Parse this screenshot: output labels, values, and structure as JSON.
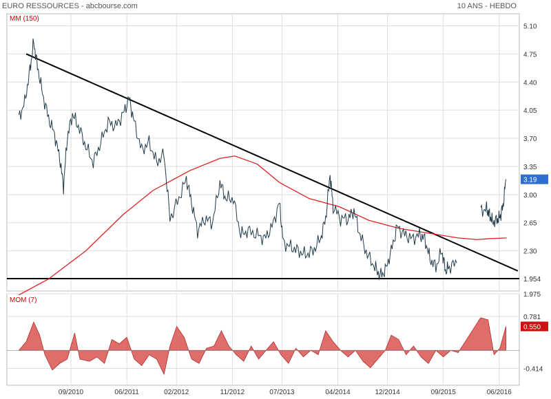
{
  "header": {
    "title": "EURO RESSOURCES - abcbourse.com",
    "period": "10 ANS - HEBDO"
  },
  "colors": {
    "price": "#1f3a4a",
    "ma": "#e02020",
    "trendline": "#000000",
    "mom_fill": "#d9534f",
    "badge_price": "#2f6fd0",
    "badge_mom": "#cc1111",
    "grid": "#dddddd"
  },
  "chart_data": [
    {
      "type": "line",
      "panel": "price",
      "indicator_label": "MM (150)",
      "ylim": [
        1.8,
        5.25
      ],
      "y_ticks": [
        "5.10",
        "4.75",
        "4.40",
        "4.05",
        "3.70",
        "3.35",
        "3.00",
        "2.65",
        "2.30",
        "1.954"
      ],
      "y_tick_values": [
        5.1,
        4.75,
        4.4,
        4.05,
        3.7,
        3.35,
        3.0,
        2.65,
        2.3,
        1.954
      ],
      "x_ticks": [
        "09/2010",
        "06/2011",
        "02/2012",
        "11/2012",
        "07/2013",
        "04/2014",
        "12/2014",
        "09/2015",
        "06/2016"
      ],
      "x_tick_positions": [
        0.0,
        0.75,
        1.417,
        2.167,
        2.833,
        3.583,
        4.25,
        5.0,
        5.75
      ],
      "last_price_label": "3.19",
      "last_price": 3.19,
      "price_series": [
        [
          -0.7,
          3.95
        ],
        [
          -0.62,
          4.15
        ],
        [
          -0.55,
          4.55
        ],
        [
          -0.5,
          4.9
        ],
        [
          -0.45,
          4.6
        ],
        [
          -0.38,
          4.25
        ],
        [
          -0.3,
          3.95
        ],
        [
          -0.22,
          3.75
        ],
        [
          -0.15,
          3.45
        ],
        [
          -0.1,
          3.1
        ],
        [
          -0.05,
          3.7
        ],
        [
          0.02,
          4.0
        ],
        [
          0.1,
          3.85
        ],
        [
          0.2,
          3.6
        ],
        [
          0.3,
          3.4
        ],
        [
          0.4,
          3.65
        ],
        [
          0.5,
          3.9
        ],
        [
          0.6,
          3.85
        ],
        [
          0.7,
          4.0
        ],
        [
          0.78,
          4.2
        ],
        [
          0.85,
          3.9
        ],
        [
          0.95,
          3.55
        ],
        [
          1.05,
          3.65
        ],
        [
          1.15,
          3.4
        ],
        [
          1.25,
          3.5
        ],
        [
          1.33,
          2.7
        ],
        [
          1.45,
          2.95
        ],
        [
          1.55,
          3.2
        ],
        [
          1.62,
          2.9
        ],
        [
          1.7,
          2.55
        ],
        [
          1.8,
          2.7
        ],
        [
          1.9,
          2.65
        ],
        [
          2.0,
          3.15
        ],
        [
          2.08,
          2.95
        ],
        [
          2.18,
          2.95
        ],
        [
          2.28,
          2.5
        ],
        [
          2.38,
          2.55
        ],
        [
          2.5,
          2.5
        ],
        [
          2.6,
          2.45
        ],
        [
          2.7,
          2.6
        ],
        [
          2.8,
          2.9
        ],
        [
          2.85,
          2.4
        ],
        [
          2.95,
          2.35
        ],
        [
          3.05,
          2.3
        ],
        [
          3.15,
          2.25
        ],
        [
          3.25,
          2.3
        ],
        [
          3.35,
          2.45
        ],
        [
          3.42,
          2.7
        ],
        [
          3.48,
          3.25
        ],
        [
          3.52,
          2.85
        ],
        [
          3.62,
          2.7
        ],
        [
          3.72,
          2.7
        ],
        [
          3.8,
          2.8
        ],
        [
          3.88,
          2.5
        ],
        [
          3.98,
          2.25
        ],
        [
          4.08,
          2.1
        ],
        [
          4.15,
          1.99
        ],
        [
          4.22,
          2.05
        ],
        [
          4.3,
          2.3
        ],
        [
          4.38,
          2.6
        ],
        [
          4.48,
          2.5
        ],
        [
          4.58,
          2.45
        ],
        [
          4.68,
          2.5
        ],
        [
          4.75,
          2.45
        ],
        [
          4.82,
          2.2
        ],
        [
          4.9,
          2.1
        ],
        [
          4.98,
          2.3
        ],
        [
          5.03,
          2.05
        ],
        [
          5.08,
          2.1
        ],
        [
          5.18,
          2.15
        ]
      ],
      "price_series_2": [
        [
          5.5,
          2.8
        ],
        [
          5.58,
          2.82
        ],
        [
          5.62,
          2.75
        ],
        [
          5.66,
          2.66
        ],
        [
          5.72,
          2.68
        ],
        [
          5.76,
          2.72
        ],
        [
          5.8,
          2.85
        ],
        [
          5.84,
          3.19
        ]
      ],
      "ma_series": [
        [
          -0.7,
          1.75
        ],
        [
          -0.3,
          1.95
        ],
        [
          0.2,
          2.3
        ],
        [
          0.7,
          2.75
        ],
        [
          1.1,
          3.05
        ],
        [
          1.6,
          3.3
        ],
        [
          2.0,
          3.45
        ],
        [
          2.2,
          3.48
        ],
        [
          2.5,
          3.38
        ],
        [
          2.8,
          3.15
        ],
        [
          3.2,
          2.95
        ],
        [
          3.6,
          2.85
        ],
        [
          4.0,
          2.68
        ],
        [
          4.4,
          2.58
        ],
        [
          4.8,
          2.52
        ],
        [
          5.2,
          2.46
        ],
        [
          5.45,
          2.44
        ],
        [
          5.6,
          2.45
        ],
        [
          5.85,
          2.46
        ]
      ],
      "trendline_down": [
        [
          -0.6,
          4.75
        ],
        [
          6.0,
          2.05
        ]
      ],
      "support_line": 1.954
    },
    {
      "type": "area",
      "panel": "momentum",
      "indicator_label": "MOM (7)",
      "ylim": [
        -0.8,
        1.3
      ],
      "y_ticks": [
        "1.975",
        "0.781",
        "-0.414"
      ],
      "y_tick_values": [
        1.975,
        0.781,
        -0.414
      ],
      "last_value_label": "0.550",
      "last_value": 0.55,
      "series": [
        [
          -0.7,
          0.0
        ],
        [
          -0.6,
          0.2
        ],
        [
          -0.5,
          0.65
        ],
        [
          -0.42,
          0.35
        ],
        [
          -0.35,
          -0.1
        ],
        [
          -0.25,
          -0.45
        ],
        [
          -0.15,
          -0.3
        ],
        [
          -0.05,
          -0.2
        ],
        [
          0.05,
          0.4
        ],
        [
          0.12,
          -0.2
        ],
        [
          0.25,
          -0.25
        ],
        [
          0.35,
          -0.15
        ],
        [
          0.45,
          -0.3
        ],
        [
          0.55,
          0.25
        ],
        [
          0.65,
          0.15
        ],
        [
          0.75,
          0.3
        ],
        [
          0.85,
          -0.2
        ],
        [
          0.95,
          -0.35
        ],
        [
          1.05,
          -0.1
        ],
        [
          1.15,
          -0.2
        ],
        [
          1.25,
          -0.55
        ],
        [
          1.33,
          0.1
        ],
        [
          1.42,
          0.55
        ],
        [
          1.52,
          0.3
        ],
        [
          1.62,
          -0.2
        ],
        [
          1.72,
          -0.3
        ],
        [
          1.82,
          0.05
        ],
        [
          1.92,
          0.1
        ],
        [
          2.02,
          0.45
        ],
        [
          2.12,
          0.1
        ],
        [
          2.22,
          -0.1
        ],
        [
          2.32,
          -0.25
        ],
        [
          2.42,
          0.1
        ],
        [
          2.52,
          -0.2
        ],
        [
          2.62,
          0.0
        ],
        [
          2.72,
          0.2
        ],
        [
          2.82,
          -0.1
        ],
        [
          2.92,
          -0.3
        ],
        [
          3.02,
          0.05
        ],
        [
          3.12,
          -0.15
        ],
        [
          3.22,
          0.0
        ],
        [
          3.32,
          -0.1
        ],
        [
          3.42,
          0.45
        ],
        [
          3.52,
          0.2
        ],
        [
          3.62,
          0.0
        ],
        [
          3.72,
          -0.15
        ],
        [
          3.82,
          0.0
        ],
        [
          3.92,
          -0.25
        ],
        [
          4.02,
          -0.4
        ],
        [
          4.12,
          -0.2
        ],
        [
          4.22,
          0.0
        ],
        [
          4.3,
          0.35
        ],
        [
          4.4,
          0.25
        ],
        [
          4.5,
          -0.1
        ],
        [
          4.6,
          0.1
        ],
        [
          4.7,
          -0.15
        ],
        [
          4.8,
          -0.3
        ],
        [
          4.9,
          0.0
        ],
        [
          5.0,
          -0.15
        ],
        [
          5.1,
          0.0
        ],
        [
          5.2,
          -0.05
        ],
        [
          5.5,
          0.75
        ],
        [
          5.6,
          0.7
        ],
        [
          5.68,
          -0.1
        ],
        [
          5.76,
          0.05
        ],
        [
          5.84,
          0.55
        ]
      ]
    }
  ]
}
